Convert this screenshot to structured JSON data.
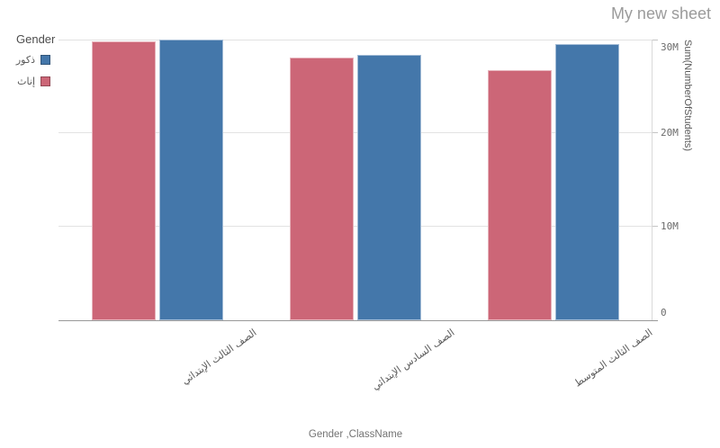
{
  "header": {
    "title": "My new sheet"
  },
  "legend": {
    "title": "Gender",
    "items": [
      {
        "label": "ذكور",
        "color": "#4477aa"
      },
      {
        "label": "إناث",
        "color": "#cc6677"
      }
    ]
  },
  "chart_data": {
    "type": "bar",
    "title": "",
    "xlabel": "Gender ,ClassName",
    "ylabel": "Sum(NumberOfStudents)",
    "categories": [
      "الصف الثالث الإبتدائي",
      "الصف السادس الإبتدائي",
      "الصف الثالث المتوسط"
    ],
    "series": [
      {
        "name": "إناث",
        "color": "#cc6677",
        "values": [
          29800000,
          28100000,
          26700000
        ]
      },
      {
        "name": "ذكور",
        "color": "#4477aa",
        "values": [
          30000000,
          28400000,
          29500000
        ]
      }
    ],
    "ylim": [
      0,
      30000000
    ],
    "yticks": [
      {
        "value": 0,
        "label": "0"
      },
      {
        "value": 10000000,
        "label": "10M"
      },
      {
        "value": 20000000,
        "label": "20M"
      },
      {
        "value": 30000000,
        "label": "30M"
      }
    ],
    "grid": true,
    "legend_position": "top-left"
  }
}
